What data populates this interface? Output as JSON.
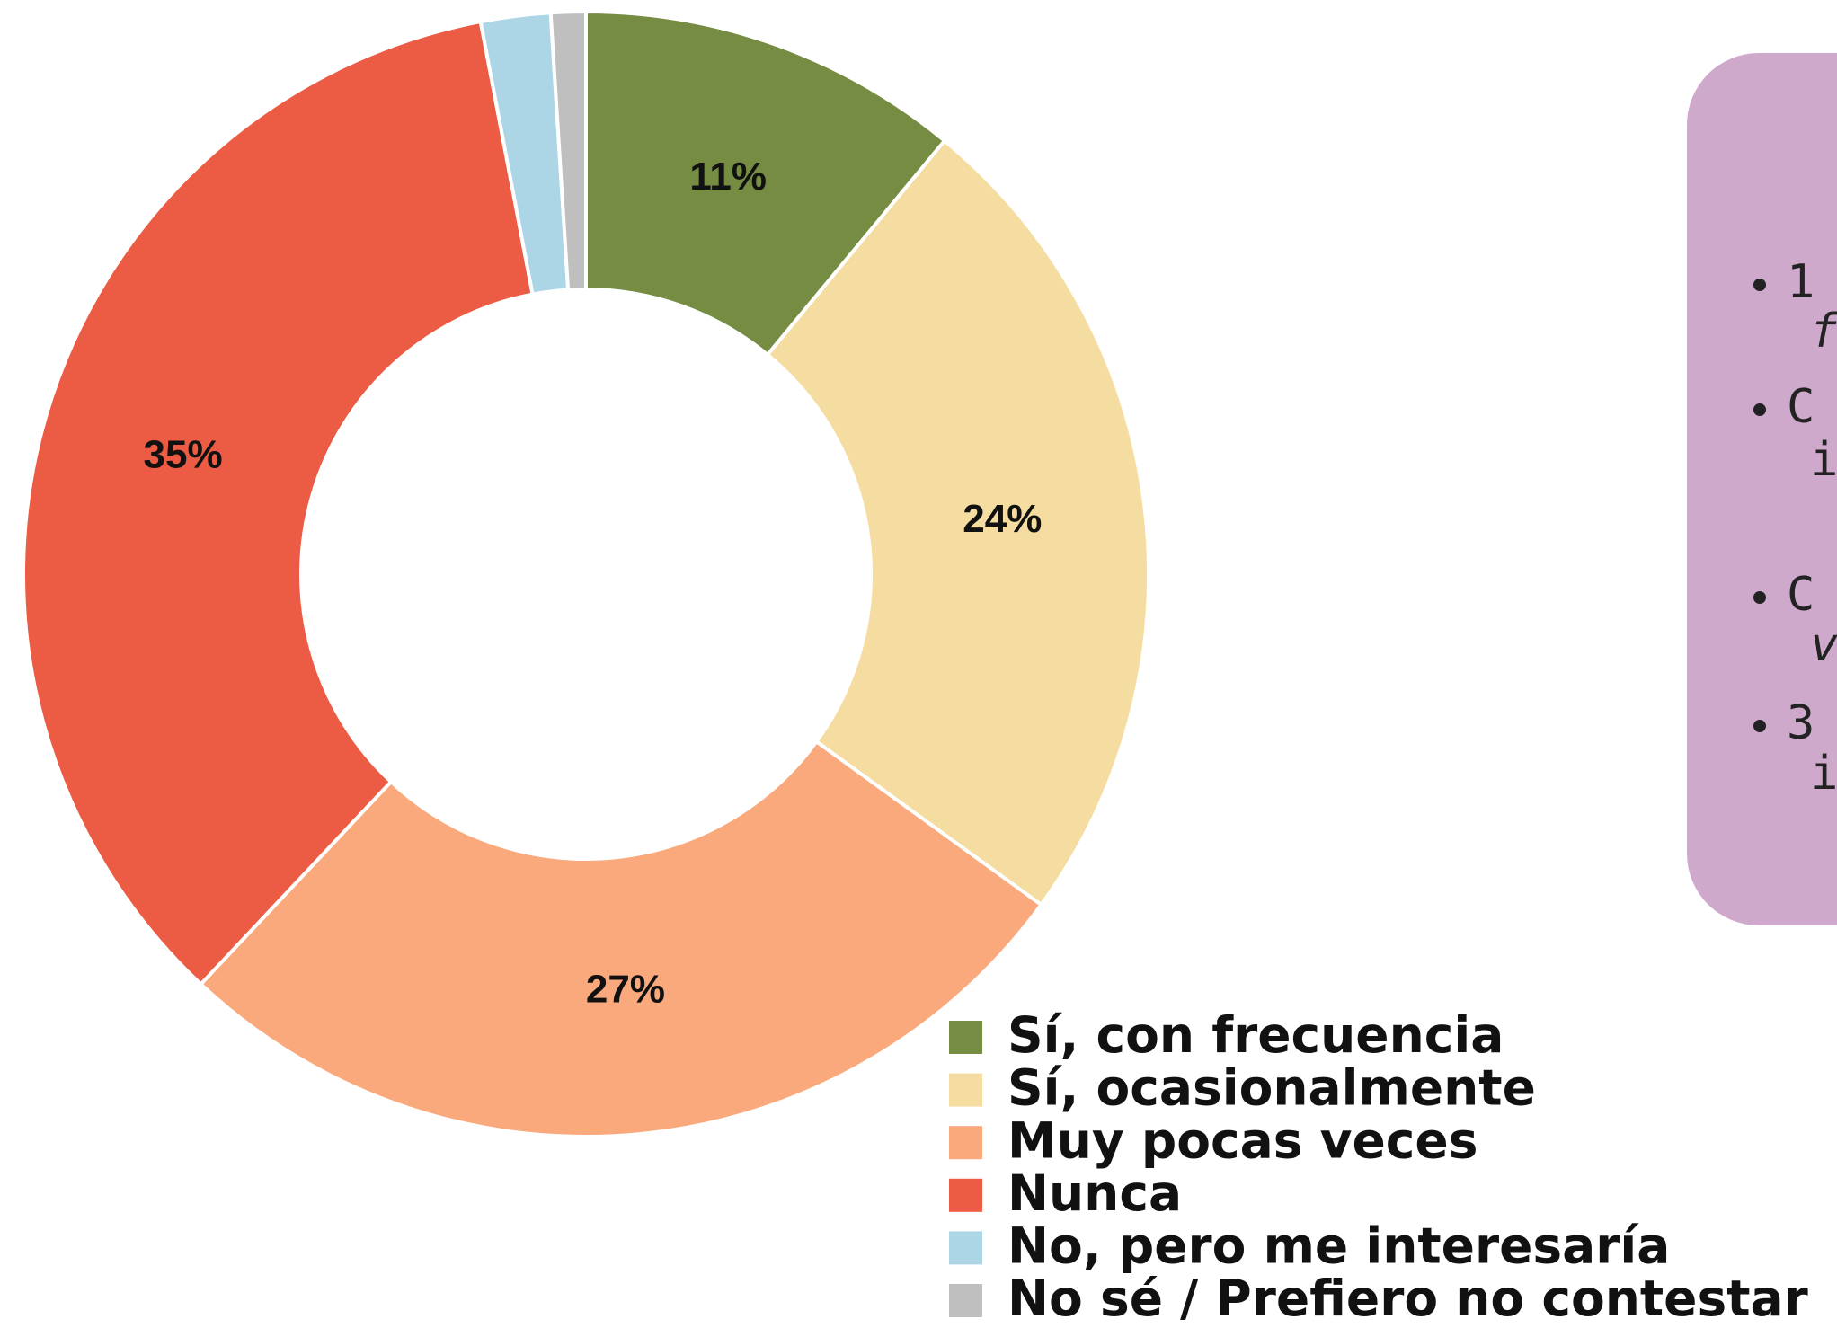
{
  "chart_data": {
    "type": "pie",
    "donut": true,
    "categories": [
      "Sí, con frecuencia",
      "Sí, ocasionalmente",
      "Muy pocas veces",
      "Nunca",
      "No, pero me interesaría",
      "No sé / Prefiero no contestar"
    ],
    "values": [
      11,
      24,
      27,
      35,
      2,
      1
    ],
    "value_labels": [
      "11%",
      "24%",
      "27%",
      "35%",
      null,
      null
    ],
    "colors": [
      "#778c43",
      "#f5dca0",
      "#f9a97c",
      "#ec5b43",
      "#acd6e5",
      "#bfbfbf"
    ],
    "legend": "bottom-right"
  },
  "panel": {
    "items": [
      [
        "1",
        "f"
      ],
      [
        "C",
        "in"
      ],
      [
        "C",
        "v"
      ],
      [
        "3",
        "in"
      ]
    ]
  }
}
